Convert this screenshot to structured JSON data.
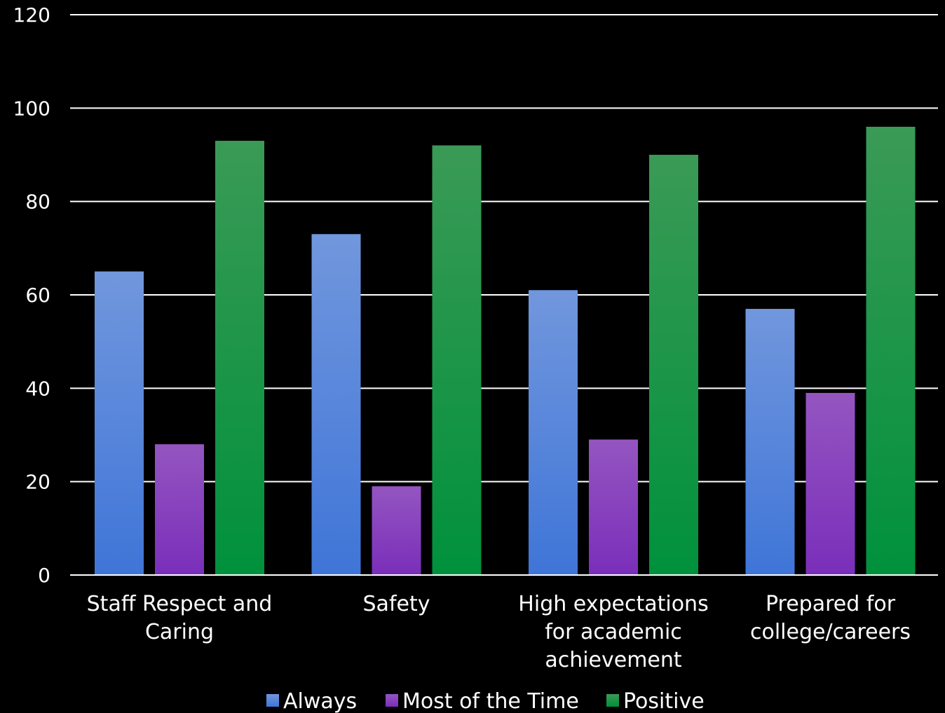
{
  "chart_data": {
    "type": "bar",
    "title": "",
    "xlabel": "",
    "ylabel": "",
    "ylim": [
      0,
      120
    ],
    "yticks": [
      0,
      20,
      40,
      60,
      80,
      100,
      120
    ],
    "grid": true,
    "legend_position": "bottom",
    "categories": [
      [
        "Staff Respect and",
        "Caring"
      ],
      [
        "Safety"
      ],
      [
        "High expectations",
        "for academic",
        "achievement"
      ],
      [
        "Prepared for",
        "college/careers"
      ]
    ],
    "series": [
      {
        "name": "Always",
        "color": "#4f7fe0",
        "color_light": "#7197dd",
        "color_dark": "#3f75d8",
        "values": [
          65,
          73,
          61,
          57
        ]
      },
      {
        "name": "Most of the Time",
        "color": "#7a35b8",
        "color_light": "#9455c0",
        "color_dark": "#7a2eba",
        "values": [
          28,
          19,
          29,
          39
        ]
      },
      {
        "name": "Positive",
        "color": "#0c9140",
        "color_light": "#3a9a56",
        "color_dark": "#00913c",
        "values": [
          93,
          92,
          90,
          96
        ]
      }
    ],
    "colors": {
      "background": "#000000",
      "axis": "#ffffff",
      "grid": "#ffffff",
      "text": "#ffffff"
    }
  }
}
